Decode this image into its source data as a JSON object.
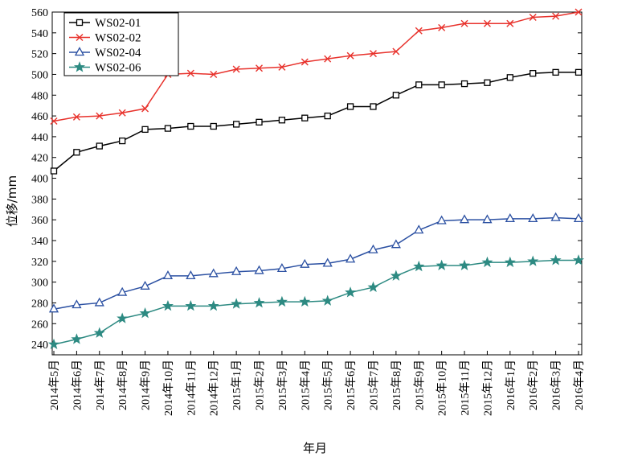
{
  "chart_data": {
    "type": "line",
    "title": "",
    "xlabel": "年月",
    "ylabel": "位移/mm",
    "ylim": [
      230,
      560
    ],
    "yticks": [
      240,
      260,
      280,
      300,
      320,
      340,
      360,
      380,
      400,
      420,
      440,
      460,
      480,
      500,
      520,
      540,
      560
    ],
    "grid": false,
    "legend": "top-left",
    "categories": [
      "2014年5月",
      "2014年6月",
      "2014年7月",
      "2014年8月",
      "2014年9月",
      "2014年10月",
      "2014年11月",
      "2014年12月",
      "2015年1月",
      "2015年2月",
      "2015年3月",
      "2015年4月",
      "2015年5月",
      "2015年6月",
      "2015年7月",
      "2015年8月",
      "2015年9月",
      "2015年10月",
      "2015年11月",
      "2015年12月",
      "2016年1月",
      "2016年2月",
      "2016年3月",
      "2016年4月"
    ],
    "series": [
      {
        "name": "WS02-01",
        "color": "#000000",
        "marker": "square",
        "values": [
          407,
          425,
          431,
          436,
          447,
          448,
          450,
          450,
          452,
          454,
          456,
          458,
          460,
          469,
          469,
          480,
          490,
          490,
          491,
          492,
          497,
          501,
          502,
          502
        ]
      },
      {
        "name": "WS02-02",
        "color": "#e8322c",
        "marker": "x",
        "values": [
          455,
          459,
          460,
          463,
          467,
          500,
          501,
          500,
          505,
          506,
          507,
          512,
          515,
          518,
          520,
          522,
          542,
          545,
          549,
          549,
          549,
          555,
          556,
          560
        ]
      },
      {
        "name": "WS02-04",
        "color": "#2b50a2",
        "marker": "triangle",
        "values": [
          274,
          278,
          280,
          290,
          296,
          306,
          306,
          308,
          310,
          311,
          313,
          317,
          318,
          322,
          331,
          336,
          350,
          359,
          360,
          360,
          361,
          361,
          362,
          361
        ]
      },
      {
        "name": "WS02-06",
        "color": "#2d8a82",
        "marker": "star",
        "values": [
          240,
          245,
          251,
          265,
          270,
          277,
          277,
          277,
          279,
          280,
          281,
          281,
          282,
          290,
          295,
          306,
          315,
          316,
          316,
          319,
          319,
          320,
          321,
          321
        ]
      }
    ]
  }
}
